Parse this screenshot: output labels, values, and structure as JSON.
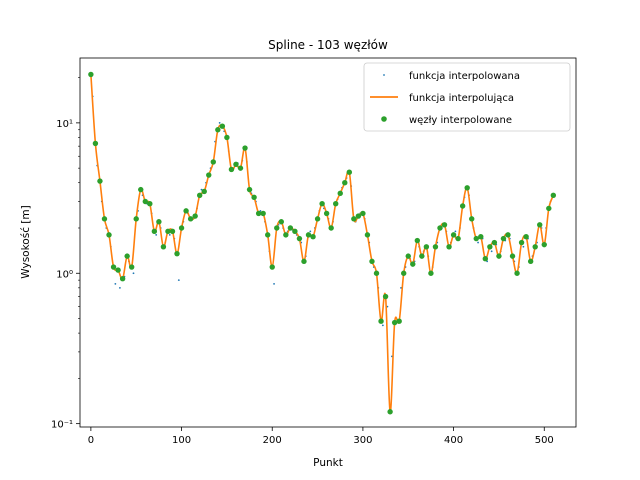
{
  "chart_data": {
    "type": "line",
    "title": "Spline - 103 węzłów",
    "xlabel": "Punkt",
    "ylabel": "Wysokość [m]",
    "xlim": [
      -12,
      535
    ],
    "ylim": [
      0.095,
      27
    ],
    "yscale": "log",
    "grid": false,
    "legend_position": "top-right",
    "xticks": [
      0,
      100,
      200,
      300,
      400,
      500
    ],
    "xtick_labels": [
      "0",
      "100",
      "200",
      "300",
      "400",
      "500"
    ],
    "yticks": [
      0.1,
      1,
      10
    ],
    "ytick_labels": [
      "10⁻¹",
      "10⁰",
      "10¹"
    ],
    "colors": {
      "interpolated": "#1f77b4",
      "spline": "#ff7f0e",
      "nodes": "#2ca02c"
    },
    "legend": [
      "funkcja interpolowana",
      "funkcja interpolująca",
      "węzły interpolowane"
    ],
    "nodes": {
      "x": [
        0,
        5,
        10,
        15,
        20,
        25,
        30,
        35,
        40,
        45,
        50,
        55,
        60,
        65,
        70,
        75,
        80,
        85,
        90,
        95,
        100,
        105,
        110,
        115,
        120,
        125,
        130,
        135,
        140,
        145,
        150,
        155,
        160,
        165,
        170,
        175,
        180,
        185,
        190,
        195,
        200,
        205,
        210,
        215,
        220,
        225,
        230,
        235,
        240,
        245,
        250,
        255,
        260,
        265,
        270,
        275,
        280,
        285,
        290,
        295,
        300,
        305,
        310,
        315,
        320,
        325,
        330,
        335,
        340,
        345,
        350,
        355,
        360,
        365,
        370,
        375,
        380,
        385,
        390,
        395,
        400,
        405,
        410,
        415,
        420,
        425,
        430,
        435,
        440,
        445,
        450,
        455,
        460,
        465,
        470,
        475,
        480,
        485,
        490,
        495,
        500,
        505,
        510
      ],
      "y": [
        21,
        7.3,
        4.1,
        2.3,
        1.8,
        1.1,
        1.05,
        0.92,
        1.3,
        1.1,
        2.3,
        3.6,
        3.0,
        2.9,
        1.9,
        2.2,
        1.5,
        1.9,
        1.9,
        1.35,
        2.0,
        2.6,
        2.3,
        2.4,
        3.3,
        3.5,
        4.5,
        5.5,
        9.0,
        9.5,
        8.0,
        4.9,
        5.3,
        5.0,
        6.8,
        3.6,
        3.2,
        2.5,
        2.5,
        1.8,
        1.1,
        2.0,
        2.2,
        1.8,
        2.0,
        1.9,
        1.7,
        1.2,
        1.8,
        1.75,
        2.3,
        2.9,
        2.5,
        2.0,
        2.9,
        3.4,
        4.0,
        4.7,
        2.3,
        2.4,
        2.5,
        1.8,
        1.2,
        1.0,
        0.48,
        0.7,
        0.12,
        0.47,
        0.48,
        1.0,
        1.3,
        1.15,
        1.65,
        1.3,
        1.5,
        1.0,
        1.5,
        2.0,
        2.1,
        1.5,
        1.8,
        1.7,
        2.8,
        3.7,
        2.3,
        1.7,
        1.75,
        1.25,
        1.5,
        1.6,
        1.3,
        1.7,
        1.8,
        1.3,
        1.0,
        1.6,
        1.75,
        1.2,
        1.5,
        2.1,
        1.55,
        2.7,
        3.3
      ]
    },
    "interpolated_points": {
      "x": [
        2,
        7,
        12,
        17,
        22,
        27,
        32,
        37,
        42,
        47,
        52,
        57,
        62,
        67,
        72,
        77,
        82,
        87,
        92,
        97,
        102,
        107,
        112,
        117,
        122,
        127,
        132,
        137,
        142,
        147,
        152,
        157,
        162,
        167,
        172,
        177,
        182,
        187,
        192,
        197,
        202,
        207,
        212,
        217,
        222,
        227,
        232,
        237,
        242,
        247,
        252,
        257,
        262,
        267,
        272,
        277,
        282,
        287,
        292,
        297,
        302,
        307,
        312,
        317,
        322,
        327,
        332,
        337,
        342,
        347,
        352,
        357,
        362,
        367,
        372,
        377,
        382,
        387,
        392,
        397,
        402,
        407,
        412,
        417,
        422,
        427,
        432,
        437,
        442,
        447,
        452,
        457,
        462,
        467,
        472,
        477,
        482,
        487,
        492,
        497,
        502,
        507
      ],
      "y": [
        15,
        5.2,
        3.0,
        2.0,
        1.5,
        0.85,
        0.8,
        0.95,
        1.2,
        1.0,
        2.6,
        3.3,
        2.9,
        2.5,
        1.8,
        2.0,
        1.6,
        1.8,
        1.7,
        0.9,
        2.2,
        2.5,
        2.3,
        2.7,
        3.6,
        4.0,
        5.0,
        7.5,
        10,
        8.8,
        6.5,
        5.0,
        5.4,
        5.6,
        5.5,
        3.4,
        3.0,
        2.6,
        2.2,
        1.4,
        0.85,
        2.1,
        2.0,
        1.9,
        1.95,
        1.8,
        1.6,
        1.3,
        1.9,
        2.0,
        2.6,
        2.7,
        2.3,
        2.2,
        3.1,
        3.7,
        4.3,
        3.8,
        2.2,
        2.5,
        2.3,
        1.6,
        1.1,
        0.8,
        0.45,
        0.6,
        0.28,
        0.5,
        0.8,
        1.1,
        1.25,
        1.2,
        1.5,
        1.4,
        1.3,
        1.1,
        1.6,
        2.0,
        1.9,
        1.6,
        1.9,
        2.0,
        3.2,
        3.3,
        2.0,
        1.6,
        1.7,
        1.2,
        1.4,
        1.55,
        1.4,
        1.65,
        1.7,
        1.2,
        1.1,
        1.5,
        1.7,
        1.3,
        1.6,
        2.0,
        2.0,
        3.0
      ]
    }
  }
}
